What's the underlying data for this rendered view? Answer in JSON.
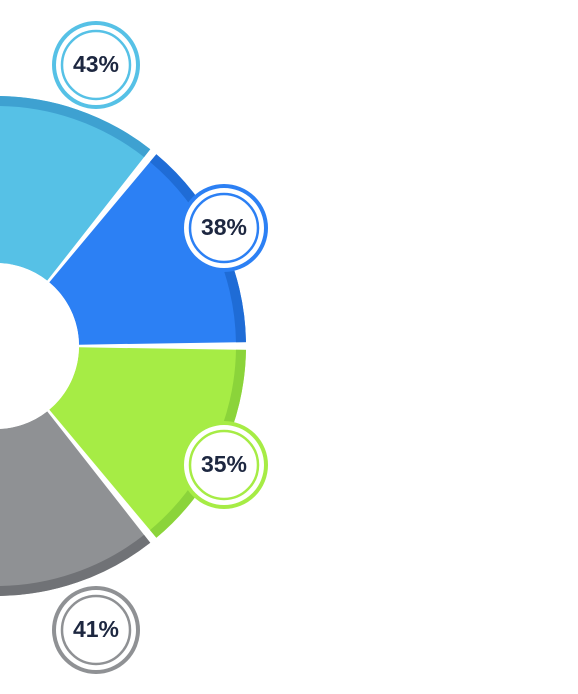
{
  "chart_data": {
    "type": "pie",
    "variant": "donut",
    "visible_portion": "right-half",
    "categories": [
      "",
      "",
      "",
      ""
    ],
    "values": [
      43,
      38,
      35,
      41
    ],
    "labels": [
      "43%",
      "38%",
      "35%",
      "41%"
    ],
    "colors": [
      "#56c1e6",
      "#2c80f4",
      "#a6ec45",
      "#8f9194"
    ],
    "shade_colors": [
      "#3d9fd0",
      "#1f6ad4",
      "#89d33a",
      "#6f7174"
    ],
    "label_text_color": "#1d2740",
    "title": "",
    "legend": "none",
    "grid": false
  }
}
